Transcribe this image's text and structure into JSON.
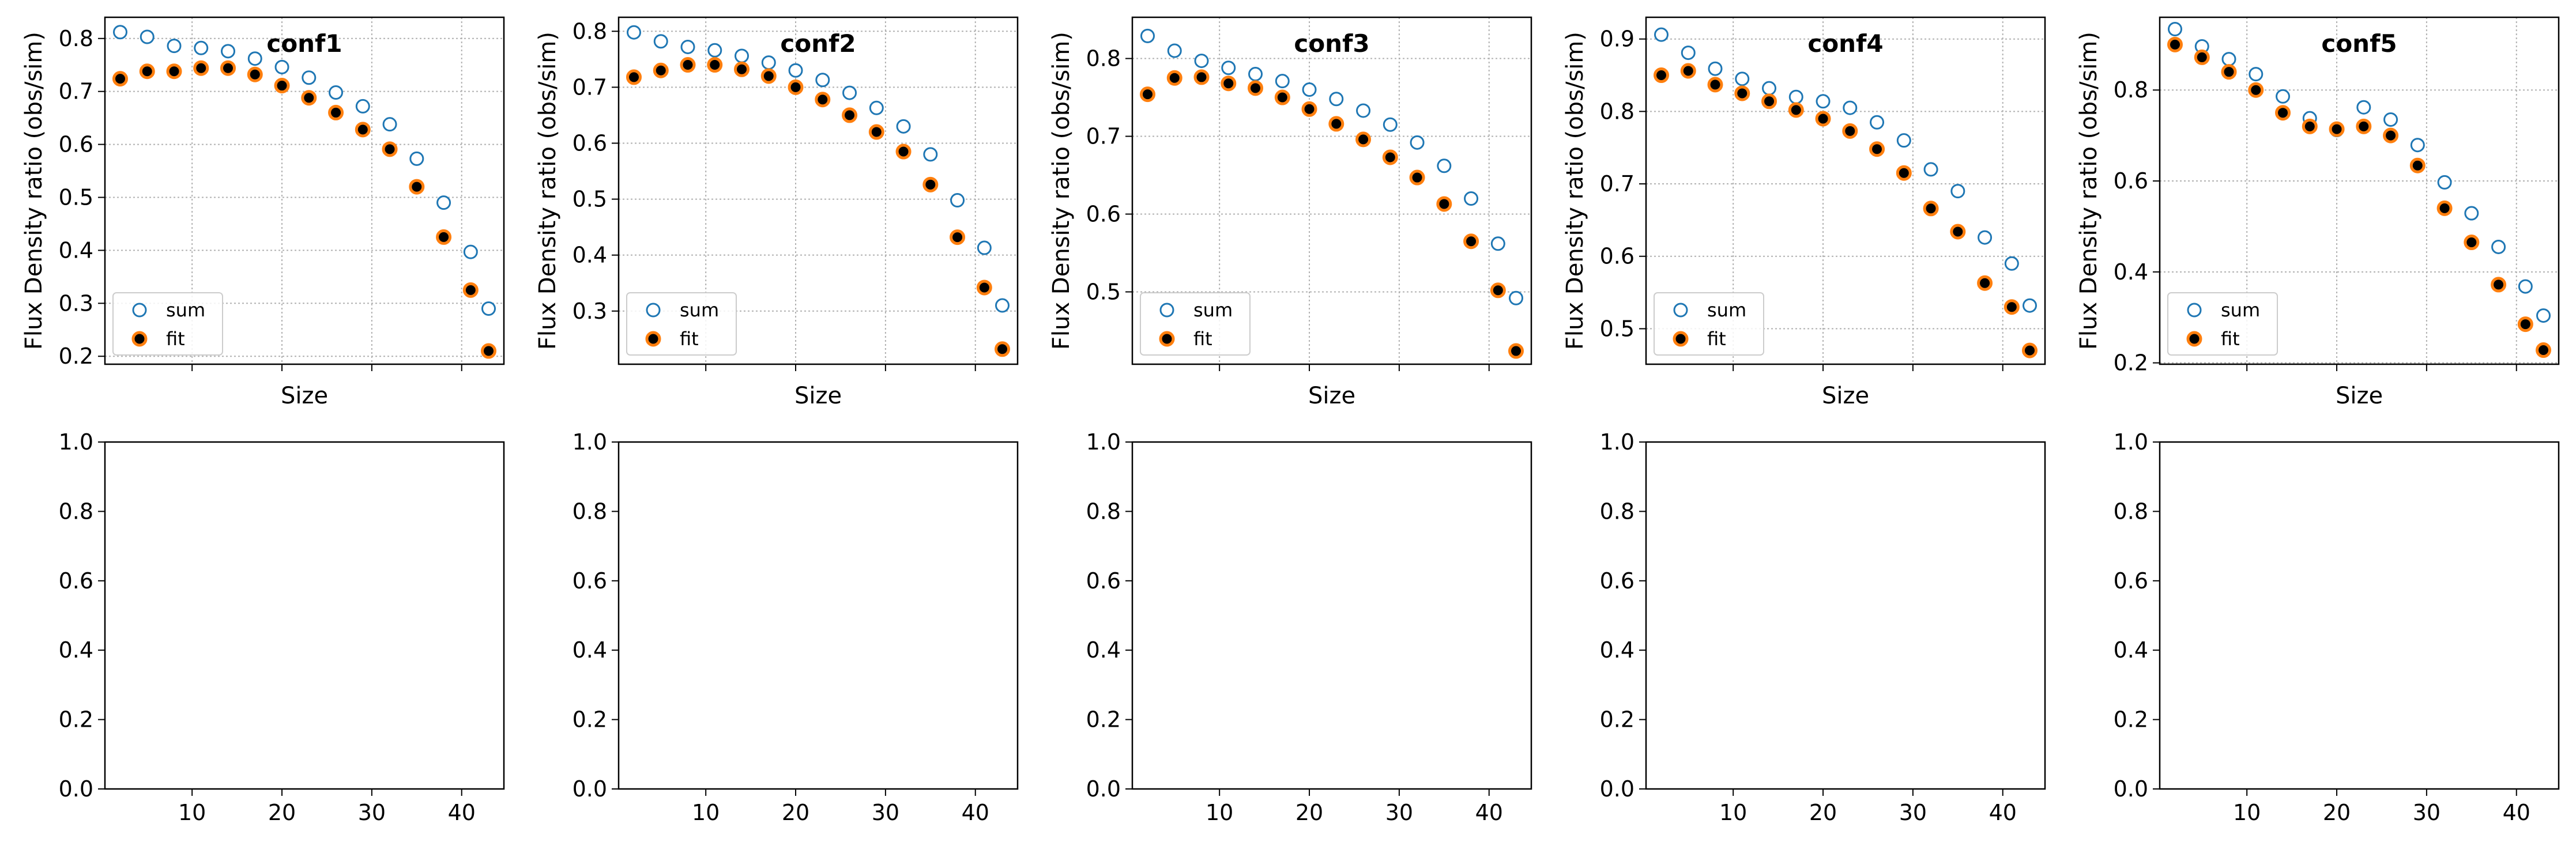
{
  "colors": {
    "sum": "#1f77b4",
    "fit_face": "#000000",
    "fit_edge": "#ff7f0e",
    "grid": "#b0b0b0"
  },
  "chart_data": [
    {
      "type": "scatter",
      "title": "conf1",
      "xlabel": "Size",
      "ylabel": "Flux Density ratio (obs/sim)",
      "xlim": [
        0.3,
        44.7
      ],
      "ylim": [
        0.185,
        0.84
      ],
      "xticks": [
        10,
        20,
        30,
        40
      ],
      "yticks": [
        0.2,
        0.3,
        0.4,
        0.5,
        0.6,
        0.7,
        0.8
      ],
      "ytick_labels": [
        "0.2",
        "0.3",
        "0.4",
        "0.5",
        "0.6",
        "0.7",
        "0.8"
      ],
      "grid": true,
      "legend": "lower-left",
      "x": [
        2,
        5,
        8,
        11,
        14,
        17,
        20,
        23,
        26,
        29,
        32,
        35,
        38,
        41,
        43
      ],
      "series": [
        {
          "name": "sum",
          "marker": "open-circle",
          "values": [
            0.812,
            0.803,
            0.786,
            0.782,
            0.776,
            0.762,
            0.746,
            0.726,
            0.698,
            0.672,
            0.638,
            0.573,
            0.49,
            0.397,
            0.29
          ]
        },
        {
          "name": "fit",
          "marker": "filled-circle",
          "values": [
            0.724,
            0.738,
            0.738,
            0.744,
            0.744,
            0.732,
            0.711,
            0.688,
            0.66,
            0.628,
            0.591,
            0.52,
            0.425,
            0.325,
            0.21
          ]
        }
      ]
    },
    {
      "type": "scatter",
      "title": "conf2",
      "xlabel": "Size",
      "ylabel": "Flux Density ratio (obs/sim)",
      "xlim": [
        0.3,
        44.7
      ],
      "ylim": [
        0.205,
        0.825
      ],
      "xticks": [
        10,
        20,
        30,
        40
      ],
      "yticks": [
        0.3,
        0.4,
        0.5,
        0.6,
        0.7,
        0.8
      ],
      "ytick_labels": [
        "0.3",
        "0.4",
        "0.5",
        "0.6",
        "0.7",
        "0.8"
      ],
      "grid": true,
      "legend": "lower-left",
      "x": [
        2,
        5,
        8,
        11,
        14,
        17,
        20,
        23,
        26,
        29,
        32,
        35,
        38,
        41,
        43
      ],
      "series": [
        {
          "name": "sum",
          "values": [
            0.798,
            0.782,
            0.772,
            0.766,
            0.756,
            0.744,
            0.73,
            0.713,
            0.69,
            0.663,
            0.63,
            0.58,
            0.498,
            0.413,
            0.31
          ]
        },
        {
          "name": "fit",
          "values": [
            0.718,
            0.73,
            0.74,
            0.74,
            0.732,
            0.72,
            0.7,
            0.678,
            0.65,
            0.62,
            0.585,
            0.526,
            0.432,
            0.342,
            0.232
          ]
        }
      ]
    },
    {
      "type": "scatter",
      "title": "conf3",
      "xlabel": "Size",
      "ylabel": "Flux Density ratio (obs/sim)",
      "xlim": [
        0.3,
        44.7
      ],
      "ylim": [
        0.407,
        0.853
      ],
      "xticks": [
        10,
        20,
        30,
        40
      ],
      "yticks": [
        0.5,
        0.6,
        0.7,
        0.8
      ],
      "ytick_labels": [
        "0.5",
        "0.6",
        "0.7",
        "0.8"
      ],
      "grid": true,
      "legend": "lower-left",
      "x": [
        2,
        5,
        8,
        11,
        14,
        17,
        20,
        23,
        26,
        29,
        32,
        35,
        38,
        41,
        43
      ],
      "series": [
        {
          "name": "sum",
          "values": [
            0.829,
            0.81,
            0.797,
            0.788,
            0.78,
            0.771,
            0.76,
            0.748,
            0.733,
            0.715,
            0.692,
            0.662,
            0.62,
            0.562,
            0.492
          ]
        },
        {
          "name": "fit",
          "values": [
            0.754,
            0.775,
            0.776,
            0.768,
            0.762,
            0.75,
            0.735,
            0.716,
            0.696,
            0.673,
            0.647,
            0.613,
            0.565,
            0.502,
            0.424
          ]
        }
      ]
    },
    {
      "type": "scatter",
      "title": "conf4",
      "xlabel": "Size",
      "ylabel": "Flux Density ratio (obs/sim)",
      "xlim": [
        0.3,
        44.7
      ],
      "ylim": [
        0.451,
        0.93
      ],
      "xticks": [
        10,
        20,
        30,
        40
      ],
      "yticks": [
        0.5,
        0.6,
        0.7,
        0.8,
        0.9
      ],
      "ytick_labels": [
        "0.5",
        "0.6",
        "0.7",
        "0.8",
        "0.9"
      ],
      "grid": true,
      "legend": "lower-left",
      "x": [
        2,
        5,
        8,
        11,
        14,
        17,
        20,
        23,
        26,
        29,
        32,
        35,
        38,
        41,
        43
      ],
      "series": [
        {
          "name": "sum",
          "values": [
            0.906,
            0.881,
            0.859,
            0.845,
            0.832,
            0.82,
            0.814,
            0.805,
            0.785,
            0.76,
            0.72,
            0.69,
            0.626,
            0.59,
            0.532
          ]
        },
        {
          "name": "fit",
          "values": [
            0.85,
            0.856,
            0.837,
            0.825,
            0.814,
            0.802,
            0.79,
            0.773,
            0.748,
            0.715,
            0.666,
            0.634,
            0.563,
            0.53,
            0.47
          ]
        }
      ]
    },
    {
      "type": "scatter",
      "title": "conf5",
      "xlabel": "Size",
      "ylabel": "Flux Density ratio (obs/sim)",
      "xlim": [
        0.3,
        44.7
      ],
      "ylim": [
        0.197,
        0.96
      ],
      "xticks": [
        10,
        20,
        30,
        40
      ],
      "yticks": [
        0.2,
        0.4,
        0.6,
        0.8
      ],
      "ytick_labels": [
        "0.2",
        "0.4",
        "0.6",
        "0.8"
      ],
      "grid": true,
      "legend": "lower-left",
      "x": [
        2,
        5,
        8,
        11,
        14,
        17,
        20,
        23,
        26,
        29,
        32,
        35,
        38,
        41,
        43
      ],
      "series": [
        {
          "name": "sum",
          "values": [
            0.934,
            0.896,
            0.868,
            0.835,
            0.786,
            0.738,
            0.712,
            0.762,
            0.735,
            0.679,
            0.597,
            0.529,
            0.455,
            0.368,
            0.304
          ]
        },
        {
          "name": "fit",
          "values": [
            0.9,
            0.872,
            0.84,
            0.8,
            0.75,
            0.72,
            0.714,
            0.72,
            0.7,
            0.634,
            0.54,
            0.465,
            0.372,
            0.285,
            0.228
          ]
        }
      ]
    },
    {
      "type": "scatter",
      "title": "",
      "xlim": [
        0.3,
        44.7
      ],
      "ylim": [
        0,
        1
      ],
      "xticks": [
        10,
        20,
        30,
        40
      ],
      "xtick_labels": [
        "10",
        "20",
        "30",
        "40"
      ],
      "yticks": [
        0,
        0.2,
        0.4,
        0.6,
        0.8,
        1.0
      ],
      "ytick_labels": [
        "0.0",
        "0.2",
        "0.4",
        "0.6",
        "0.8",
        "1.0"
      ],
      "grid": false,
      "series": []
    },
    {
      "type": "scatter",
      "title": "",
      "xlim": [
        0.3,
        44.7
      ],
      "ylim": [
        0,
        1
      ],
      "xticks": [
        10,
        20,
        30,
        40
      ],
      "xtick_labels": [
        "10",
        "20",
        "30",
        "40"
      ],
      "yticks": [
        0,
        0.2,
        0.4,
        0.6,
        0.8,
        1.0
      ],
      "ytick_labels": [
        "0.0",
        "0.2",
        "0.4",
        "0.6",
        "0.8",
        "1.0"
      ],
      "grid": false,
      "series": []
    },
    {
      "type": "scatter",
      "title": "",
      "xlim": [
        0.3,
        44.7
      ],
      "ylim": [
        0,
        1
      ],
      "xticks": [
        10,
        20,
        30,
        40
      ],
      "xtick_labels": [
        "10",
        "20",
        "30",
        "40"
      ],
      "yticks": [
        0,
        0.2,
        0.4,
        0.6,
        0.8,
        1.0
      ],
      "ytick_labels": [
        "0.0",
        "0.2",
        "0.4",
        "0.6",
        "0.8",
        "1.0"
      ],
      "grid": false,
      "series": []
    },
    {
      "type": "scatter",
      "title": "",
      "xlim": [
        0.3,
        44.7
      ],
      "ylim": [
        0,
        1
      ],
      "xticks": [
        10,
        20,
        30,
        40
      ],
      "xtick_labels": [
        "10",
        "20",
        "30",
        "40"
      ],
      "yticks": [
        0,
        0.2,
        0.4,
        0.6,
        0.8,
        1.0
      ],
      "ytick_labels": [
        "0.0",
        "0.2",
        "0.4",
        "0.6",
        "0.8",
        "1.0"
      ],
      "grid": false,
      "series": []
    },
    {
      "type": "scatter",
      "title": "",
      "xlim": [
        0.3,
        44.7
      ],
      "ylim": [
        0,
        1
      ],
      "xticks": [
        10,
        20,
        30,
        40
      ],
      "xtick_labels": [
        "10",
        "20",
        "30",
        "40"
      ],
      "yticks": [
        0,
        0.2,
        0.4,
        0.6,
        0.8,
        1.0
      ],
      "ytick_labels": [
        "0.0",
        "0.2",
        "0.4",
        "0.6",
        "0.8",
        "1.0"
      ],
      "grid": false,
      "series": []
    }
  ]
}
